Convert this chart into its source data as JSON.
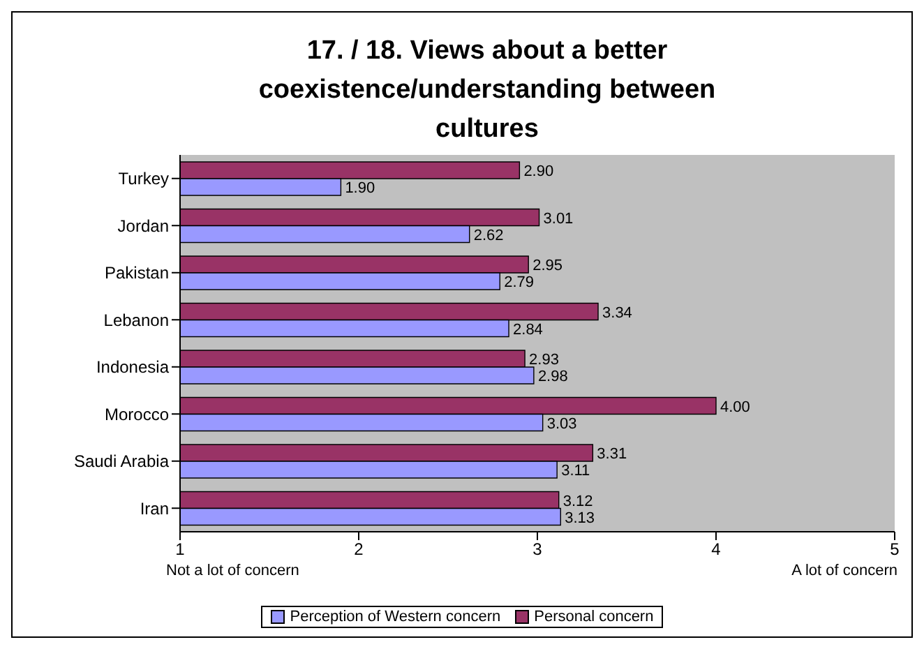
{
  "chart_data": {
    "type": "bar",
    "orientation": "horizontal",
    "title": "17. / 18. Views about a better coexistence/understanding between cultures",
    "categories": [
      "Turkey",
      "Jordan",
      "Pakistan",
      "Lebanon",
      "Indonesia",
      "Morocco",
      "Saudi Arabia",
      "Iran"
    ],
    "series": [
      {
        "name": "Perception of Western concern",
        "color": "#9999ff",
        "values": [
          1.9,
          2.62,
          2.79,
          2.84,
          2.98,
          3.03,
          3.11,
          3.13
        ],
        "value_labels": [
          "1.90",
          "2.62",
          "2.79",
          "2.84",
          "2.98",
          "3.03",
          "3.11",
          "3.13"
        ]
      },
      {
        "name": "Personal concern",
        "color": "#993366",
        "values": [
          2.9,
          3.01,
          2.95,
          3.34,
          2.93,
          4.0,
          3.31,
          3.12
        ],
        "value_labels": [
          "2.90",
          "3.01",
          "2.95",
          "3.34",
          "2.93",
          "4.00",
          "3.31",
          "3.12"
        ]
      }
    ],
    "xlim": [
      1,
      5
    ],
    "xticks": [
      1,
      2,
      3,
      4,
      5
    ],
    "grid": false,
    "legend": "bottom",
    "annotations": [
      "Not a lot of concern",
      "A lot of concern"
    ]
  }
}
